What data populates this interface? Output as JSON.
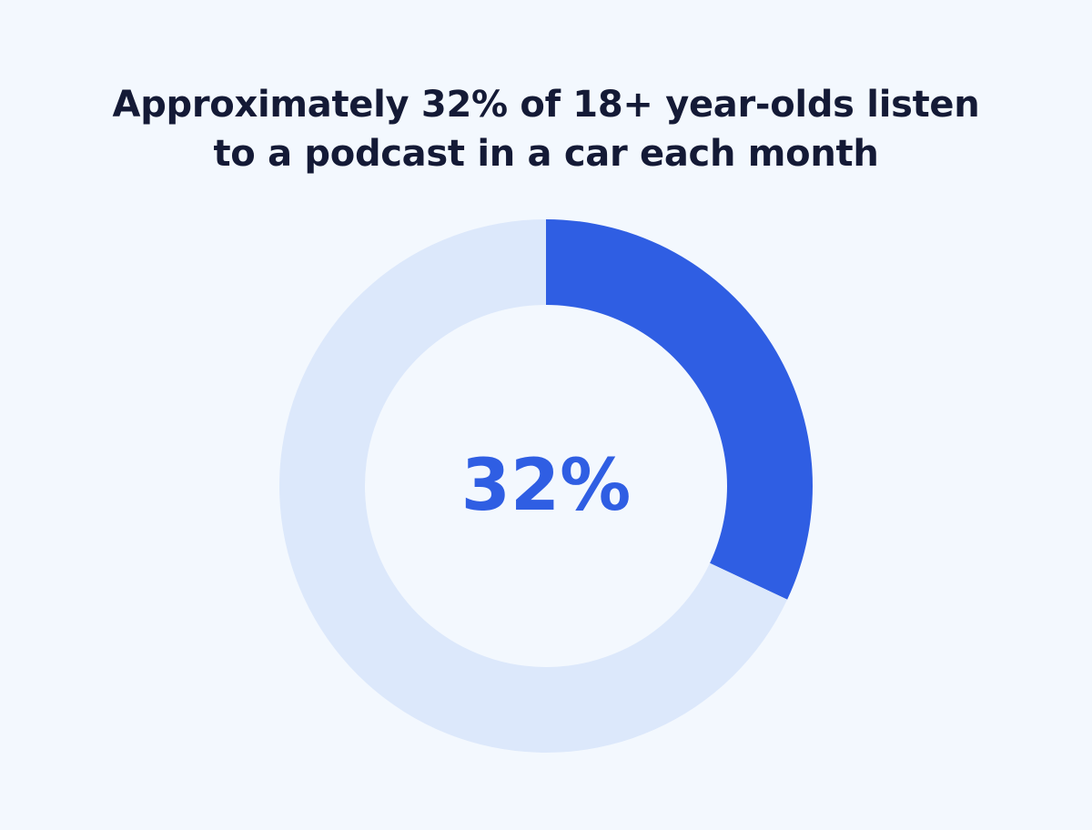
{
  "chart_data": {
    "type": "pie",
    "title": "Approximately 32% of 18+ year-olds listen to a podcast in a car each month",
    "title_lines": [
      "Approximately 32% of 18+ year-olds listen",
      "to a podcast in a car each month"
    ],
    "donut": true,
    "center_label": "32%",
    "slices": [
      {
        "value": 32,
        "color": "#2f5ee3"
      },
      {
        "value": 68,
        "color": "#dce8fb"
      }
    ]
  },
  "colors": {
    "background": "#f3f8fe",
    "title": "#141a36",
    "accent": "#2f5ee3",
    "track": "#dce8fb"
  }
}
